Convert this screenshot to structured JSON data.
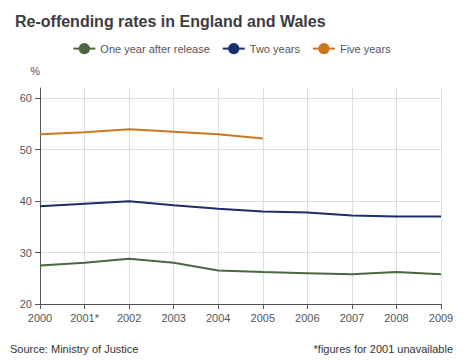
{
  "chart_data": {
    "type": "line",
    "title": "Re-offending rates in England and Wales",
    "y_label": "%",
    "categories": [
      "2000",
      "2001*",
      "2002",
      "2003",
      "2004",
      "2005",
      "2006",
      "2007",
      "2008",
      "2009"
    ],
    "series": [
      {
        "name": "One year after release",
        "color": "#4a6741",
        "values": [
          27.5,
          28.0,
          28.8,
          28.0,
          26.5,
          26.2,
          26.0,
          25.8,
          26.2,
          25.8
        ]
      },
      {
        "name": "Two years",
        "color": "#1b2d6b",
        "values": [
          39.0,
          39.5,
          40.0,
          39.2,
          38.5,
          38.0,
          37.8,
          37.2,
          37.0,
          37.0
        ]
      },
      {
        "name": "Five years",
        "color": "#c87820",
        "values": [
          53.0,
          53.4,
          54.0,
          53.5,
          53.0,
          52.2,
          null,
          null,
          null,
          null
        ]
      }
    ],
    "ylim": [
      20,
      62
    ],
    "yticks": [
      20,
      30,
      40,
      50,
      60
    ],
    "grid": true,
    "legend": "top",
    "annotations": [
      "Source: Ministry of Justice",
      "*figures for 2001 unavailable"
    ]
  }
}
